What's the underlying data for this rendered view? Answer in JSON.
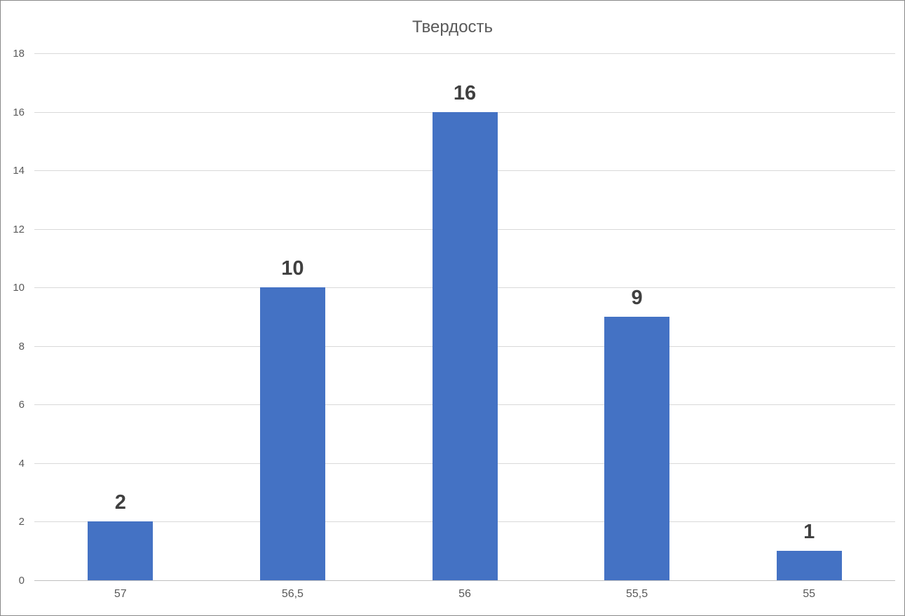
{
  "chart_data": {
    "type": "bar",
    "title": "Твердость",
    "categories": [
      "57",
      "56,5",
      "56",
      "55,5",
      "55"
    ],
    "values": [
      2,
      10,
      16,
      9,
      1
    ],
    "ylim": [
      0,
      18
    ],
    "yticks": [
      0,
      2,
      4,
      6,
      8,
      10,
      12,
      14,
      16,
      18
    ],
    "grid": true,
    "legend_position": "none",
    "bar_color": "#4472C4",
    "data_label_color": "#404040",
    "axis_text_color": "#595959",
    "gridline_color": "#D9D9D9",
    "background_color": "#FFFFFF"
  }
}
